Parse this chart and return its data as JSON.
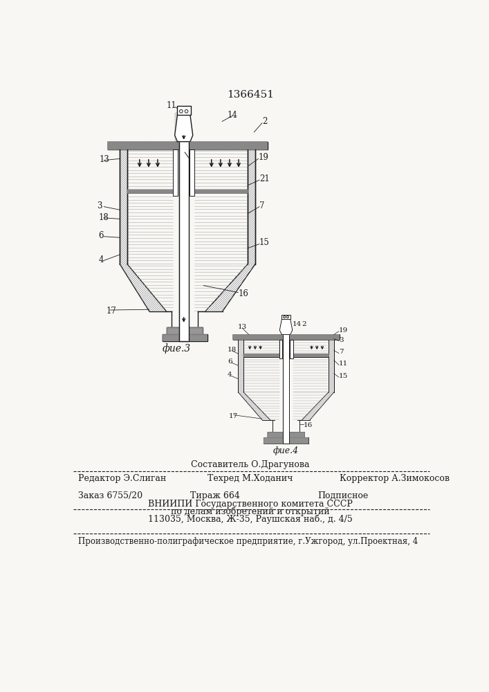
{
  "title_number": "1366451",
  "fig3_label": "фие.3",
  "fig4_label": "фие.4",
  "line1_left": "Редактор Э.Слиган",
  "line1_center": "Техред М.Ходанич",
  "line1_right": "Корректор А.Зимокосов",
  "line_center_top": "Составитель О.Драгунова",
  "order_text": "Заказ 6755/20",
  "tirazh_text": "Тираж 664",
  "podpisnoe_text": "Подписное",
  "vnipi_text": "ВНИИПИ Государственного комитета СССР",
  "po_delam_text": "по делам изобретений и открытий",
  "address_text": "113035, Москва, Ж-35, Раушская наб., д. 4/5",
  "bottom_text": "Производственно-полиграфическое предприятие, г.Ужгород, ул.Проектная, 4",
  "bg_color": "#f8f7f4",
  "drawing_color": "#1a1a1a"
}
